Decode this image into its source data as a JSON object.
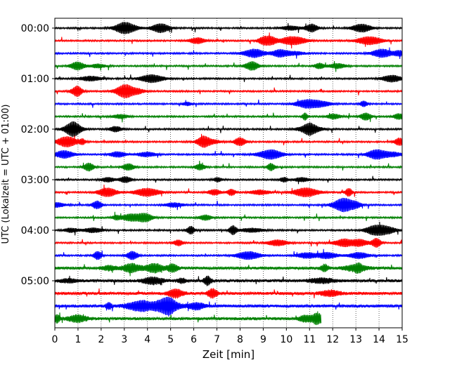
{
  "chart_data": {
    "type": "line",
    "title": "",
    "xlabel": "Zeit  [min]",
    "ylabel": "UTC (Lokalzeit = UTC + 01:00)",
    "xlim": [
      0,
      15
    ],
    "x_ticks": [
      "0",
      "1",
      "2",
      "3",
      "4",
      "5",
      "6",
      "7",
      "8",
      "9",
      "10",
      "11",
      "12",
      "13",
      "14",
      "15"
    ],
    "y_ticks": [
      "00:00",
      "01:00",
      "02:00",
      "03:00",
      "04:00",
      "05:00"
    ],
    "minutes_per_row": 15,
    "rows_per_tick": 4,
    "grid_x": "dotted vertical lines at each minute",
    "series_colors": [
      "#000000",
      "#ff0000",
      "#0000ff",
      "#008000"
    ],
    "series": [
      {
        "start": "00:00",
        "end_min": 15,
        "color": "#000000"
      },
      {
        "start": "00:15",
        "end_min": 15,
        "color": "#ff0000"
      },
      {
        "start": "00:30",
        "end_min": 15,
        "color": "#0000ff"
      },
      {
        "start": "00:45",
        "end_min": 15,
        "color": "#008000"
      },
      {
        "start": "01:00",
        "end_min": 15,
        "color": "#000000"
      },
      {
        "start": "01:15",
        "end_min": 15,
        "color": "#ff0000"
      },
      {
        "start": "01:30",
        "end_min": 15,
        "color": "#0000ff"
      },
      {
        "start": "01:45",
        "end_min": 15,
        "color": "#008000"
      },
      {
        "start": "02:00",
        "end_min": 15,
        "color": "#000000"
      },
      {
        "start": "02:15",
        "end_min": 15,
        "color": "#ff0000"
      },
      {
        "start": "02:30",
        "end_min": 15,
        "color": "#0000ff"
      },
      {
        "start": "02:45",
        "end_min": 15,
        "color": "#008000"
      },
      {
        "start": "03:00",
        "end_min": 15,
        "color": "#000000"
      },
      {
        "start": "03:15",
        "end_min": 15,
        "color": "#ff0000"
      },
      {
        "start": "03:30",
        "end_min": 15,
        "color": "#0000ff"
      },
      {
        "start": "03:45",
        "end_min": 15,
        "color": "#008000"
      },
      {
        "start": "04:00",
        "end_min": 15,
        "color": "#000000"
      },
      {
        "start": "04:15",
        "end_min": 15,
        "color": "#ff0000"
      },
      {
        "start": "04:30",
        "end_min": 15,
        "color": "#0000ff"
      },
      {
        "start": "04:45",
        "end_min": 15,
        "color": "#008000"
      },
      {
        "start": "05:00",
        "end_min": 15,
        "color": "#000000"
      },
      {
        "start": "05:15",
        "end_min": 15,
        "color": "#ff0000"
      },
      {
        "start": "05:30",
        "end_min": 15,
        "color": "#0000ff"
      },
      {
        "start": "05:45",
        "end_min": 11.5,
        "color": "#008000"
      }
    ]
  }
}
